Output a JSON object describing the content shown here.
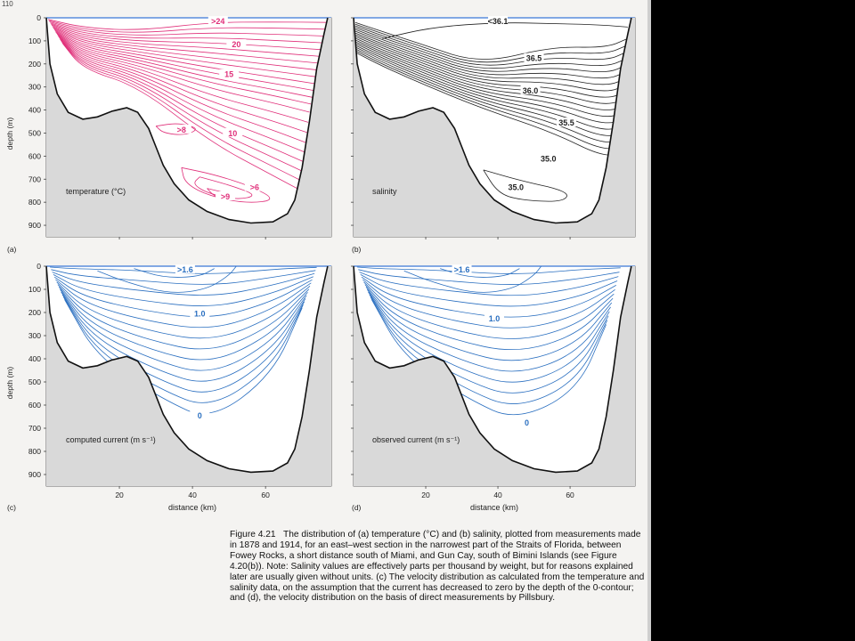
{
  "page": {
    "running_head": "110"
  },
  "figure": {
    "caption_title": "Figure 4.21",
    "caption_text": "The distribution of (a) temperature (°C) and (b) salinity, plotted from measurements made in 1878 and 1914, for an east–west section in the narrowest part of the Straits of Florida, between Fowey Rocks, a short distance south of Miami, and Gun Cay, south of Bimini Islands (see Figure 4.20(b)). Note: Salinity values are effectively parts per thousand by weight, but for reasons explained later are usually given without units. (c) The velocity distribution as calculated from the temperature and salinity data, on the assumption that the current has decreased to zero by the depth of the 0-contour; and (d), the velocity distribution on the basis of direct measurements by Pillsbury.",
    "ylabel": "depth (m)",
    "xlabel": "distance (km)",
    "y_ticks": [
      "0",
      "100",
      "200",
      "300",
      "400",
      "500",
      "600",
      "700",
      "800",
      "900"
    ],
    "x_ticks": [
      "20",
      "40",
      "60"
    ],
    "colors": {
      "temperature": "#e0307a",
      "salinity": "#222222",
      "current": "#2a6fc0",
      "seabed": "#d9d9d9"
    },
    "panels": [
      {
        "id": "a",
        "letter": "(a)",
        "title": "temperature (°C)",
        "color": "#e0307a",
        "contour_labels": [
          ">24",
          "20",
          "15",
          "10",
          ">8",
          ">6",
          ">9"
        ]
      },
      {
        "id": "b",
        "letter": "(b)",
        "title": "salinity",
        "color": "#222222",
        "contour_labels": [
          "<36.1",
          "36.5",
          "36.0",
          "35.5",
          "35.0",
          "35.0"
        ]
      },
      {
        "id": "c",
        "letter": "(c)",
        "title": "computed current (m s⁻¹)",
        "color": "#2a6fc0",
        "contour_labels": [
          ">1.6",
          "1.0",
          "0"
        ]
      },
      {
        "id": "d",
        "letter": "(d)",
        "title": "observed current (m s⁻¹)",
        "color": "#2a6fc0",
        "contour_labels": [
          ">1.6",
          "1.0",
          "0"
        ]
      }
    ]
  },
  "chart_data": [
    {
      "type": "contour",
      "panel": "(a)",
      "title": "temperature (°C)",
      "ylabel": "depth (m)",
      "xlabel": "",
      "ylim": [
        950,
        0
      ],
      "xlim": [
        0,
        80
      ],
      "labels": [
        {
          "text": ">24",
          "x": 47,
          "y": 20
        },
        {
          "text": "20",
          "x": 52,
          "y": 120
        },
        {
          "text": "15",
          "x": 50,
          "y": 250
        },
        {
          "text": "10",
          "x": 51,
          "y": 505
        },
        {
          "text": ">8",
          "x": 37,
          "y": 490
        },
        {
          "text": ">6",
          "x": 57,
          "y": 740
        },
        {
          "text": ">9",
          "x": 49,
          "y": 780
        }
      ]
    },
    {
      "type": "contour",
      "panel": "(b)",
      "title": "salinity",
      "ylabel": "",
      "xlabel": "",
      "ylim": [
        950,
        0
      ],
      "xlim": [
        0,
        80
      ],
      "labels": [
        {
          "text": "<36.1",
          "x": 40,
          "y": 20
        },
        {
          "text": "36.5",
          "x": 50,
          "y": 180
        },
        {
          "text": "36.0",
          "x": 49,
          "y": 320
        },
        {
          "text": "35.5",
          "x": 59,
          "y": 460
        },
        {
          "text": "35.0",
          "x": 54,
          "y": 615
        },
        {
          "text": "35.0",
          "x": 45,
          "y": 740
        }
      ]
    },
    {
      "type": "contour",
      "panel": "(c)",
      "title": "computed current (m s⁻¹)",
      "ylabel": "depth (m)",
      "xlabel": "distance (km)",
      "ylim": [
        950,
        0
      ],
      "xlim": [
        0,
        80
      ],
      "labels": [
        {
          "text": ">1.6",
          "x": 38,
          "y": 20
        },
        {
          "text": "1.0",
          "x": 42,
          "y": 210
        },
        {
          "text": "0",
          "x": 42,
          "y": 650
        }
      ]
    },
    {
      "type": "contour",
      "panel": "(d)",
      "title": "observed current (m s⁻¹)",
      "ylabel": "",
      "xlabel": "distance (km)",
      "ylim": [
        950,
        0
      ],
      "xlim": [
        0,
        80
      ],
      "labels": [
        {
          "text": ">1.6",
          "x": 30,
          "y": 20
        },
        {
          "text": "1.0",
          "x": 39,
          "y": 230
        },
        {
          "text": "0",
          "x": 48,
          "y": 680
        }
      ]
    }
  ]
}
